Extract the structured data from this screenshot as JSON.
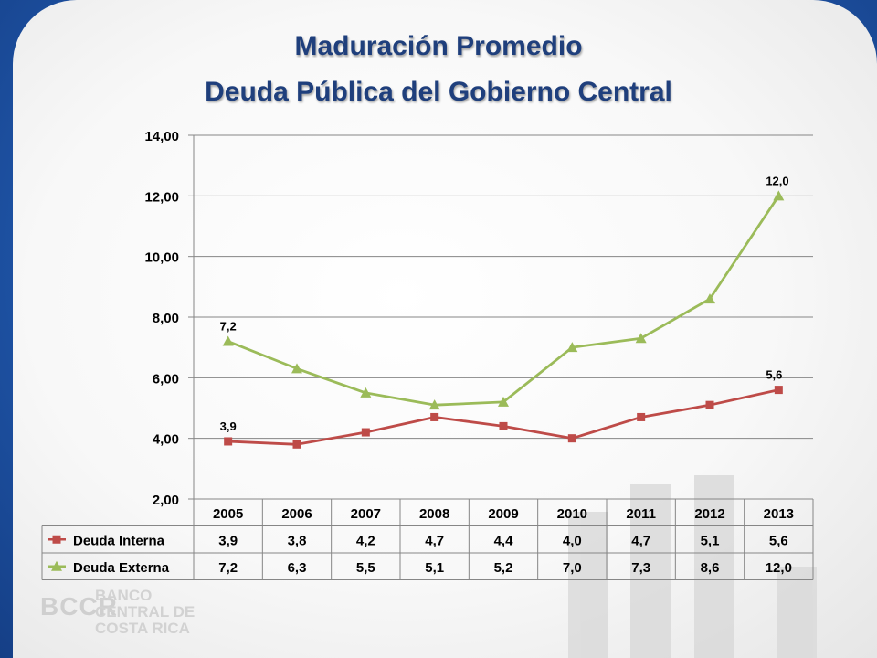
{
  "title_line1": "Maduración Promedio",
  "title_line2": "Deuda Pública del Gobierno Central",
  "logo": {
    "initials": "BCCR",
    "name_lines": [
      "BANCO",
      "CENTRAL DE",
      "COSTA RICA"
    ]
  },
  "colors": {
    "internal": "#be4b48",
    "external": "#9bbb59",
    "title": "#1f3f7c",
    "grid": "#868686"
  },
  "chart_data": {
    "type": "line",
    "categories": [
      "2005",
      "2006",
      "2007",
      "2008",
      "2009",
      "2010",
      "2011",
      "2012",
      "2013"
    ],
    "ylim": [
      2,
      14
    ],
    "yticks": [
      "2,00",
      "4,00",
      "6,00",
      "8,00",
      "10,00",
      "12,00",
      "14,00"
    ],
    "ytick_values": [
      2,
      4,
      6,
      8,
      10,
      12,
      14
    ],
    "series": [
      {
        "name": "Deuda Interna",
        "values": [
          3.9,
          3.8,
          4.2,
          4.7,
          4.4,
          4.0,
          4.7,
          5.1,
          5.6
        ],
        "table": [
          "3,9",
          "3,8",
          "4,2",
          "4,7",
          "4,4",
          "4,0",
          "4,7",
          "5,1",
          "5,6"
        ],
        "first_label": "3,9",
        "last_label": "5,6",
        "marker": "square"
      },
      {
        "name": "Deuda Externa",
        "values": [
          7.2,
          6.3,
          5.5,
          5.1,
          5.2,
          7.0,
          7.3,
          8.6,
          12.0
        ],
        "table": [
          "7,2",
          "6,3",
          "5,5",
          "5,1",
          "5,2",
          "7,0",
          "7,3",
          "8,6",
          "12,0"
        ],
        "first_label": "7,2",
        "last_label": "12,0",
        "marker": "triangle"
      }
    ],
    "legend": "data-table",
    "grid": true
  }
}
